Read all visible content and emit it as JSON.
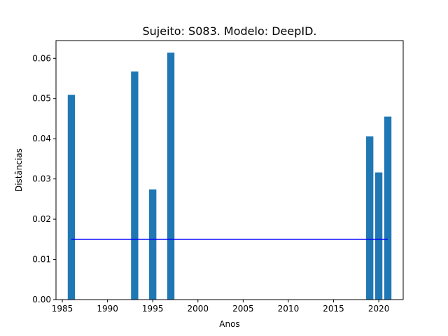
{
  "chart_data": {
    "type": "bar",
    "title": "Sujeito: S083. Modelo: DeepID.",
    "xlabel": "Anos",
    "ylabel": "Distâncias",
    "xlim": [
      1984.3,
      2022.7
    ],
    "ylim": [
      0,
      0.0644
    ],
    "xticks": [
      1985,
      1990,
      1995,
      2000,
      2005,
      2010,
      2015,
      2020
    ],
    "yticks": [
      0.0,
      0.01,
      0.02,
      0.03,
      0.04,
      0.05,
      0.06
    ],
    "ytick_labels": [
      "0.00",
      "0.01",
      "0.02",
      "0.03",
      "0.04",
      "0.05",
      "0.06"
    ],
    "bar_width": 0.8,
    "bar_color": "#1f77b4",
    "bars": [
      {
        "x": 1986,
        "y": 0.0509
      },
      {
        "x": 1993,
        "y": 0.0567
      },
      {
        "x": 1995,
        "y": 0.0274
      },
      {
        "x": 1997,
        "y": 0.0614
      },
      {
        "x": 2019,
        "y": 0.0406
      },
      {
        "x": 2020,
        "y": 0.0316
      },
      {
        "x": 2021,
        "y": 0.0455
      }
    ],
    "line": {
      "x": [
        1986,
        2021
      ],
      "y": [
        0.015,
        0.015
      ],
      "color": "#0000ff"
    },
    "grid": false,
    "legend": "none"
  }
}
